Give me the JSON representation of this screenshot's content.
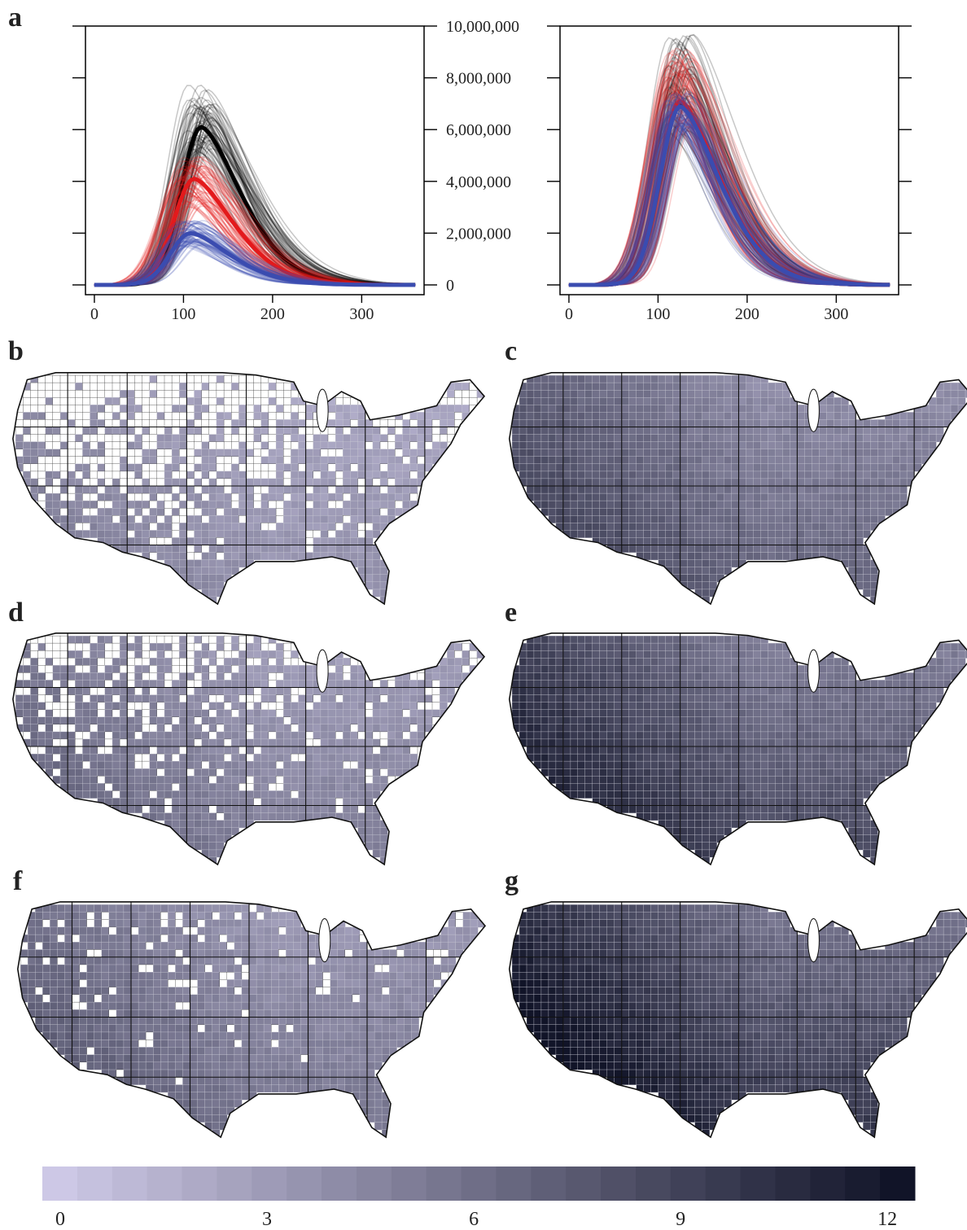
{
  "panel_letters": [
    "a",
    "b",
    "c",
    "d",
    "e",
    "f",
    "g"
  ],
  "chart_data": [
    {
      "type": "line",
      "panel": "a-left",
      "x_ticks": [
        0,
        100,
        200,
        300
      ],
      "y_ticks": [
        0,
        2000000,
        4000000,
        6000000,
        8000000,
        10000000
      ],
      "xlim": [
        -10,
        370
      ],
      "ylim": [
        0,
        10000000
      ],
      "grid": false,
      "series": [
        {
          "color": "#000000",
          "ensemble": true,
          "peak_day": 120,
          "peak_value": 6100000,
          "peak_range": [
            5000000,
            7800000
          ]
        },
        {
          "color": "#e31a1c",
          "ensemble": true,
          "peak_day": 112,
          "peak_value": 4100000,
          "peak_range": [
            3000000,
            5000000
          ]
        },
        {
          "color": "#3a4cb0",
          "ensemble": true,
          "peak_day": 108,
          "peak_value": 2000000,
          "peak_range": [
            1500000,
            2500000
          ]
        }
      ]
    },
    {
      "type": "line",
      "panel": "a-right",
      "x_ticks": [
        0,
        100,
        200,
        300
      ],
      "y_ticks": [
        0,
        2000000,
        4000000,
        6000000,
        8000000,
        10000000
      ],
      "xlim": [
        -10,
        370
      ],
      "ylim": [
        0,
        10000000
      ],
      "grid": false,
      "series": [
        {
          "color": "#000000",
          "ensemble": true,
          "peak_day": 125,
          "peak_value": 7000000,
          "peak_range": [
            5800000,
            9800000
          ]
        },
        {
          "color": "#e31a1c",
          "ensemble": true,
          "peak_day": 125,
          "peak_value": 7100000,
          "peak_range": [
            6000000,
            9200000
          ]
        },
        {
          "color": "#3a4cb0",
          "ensemble": true,
          "peak_day": 125,
          "peak_value": 6900000,
          "peak_range": [
            6000000,
            7500000
          ]
        }
      ]
    }
  ],
  "y_tick_labels": [
    "0",
    "2,000,000",
    "4,000,000",
    "6,000,000",
    "8,000,000",
    "10,000,000"
  ],
  "x_tick_labels": [
    "0",
    "100",
    "200",
    "300"
  ],
  "maps": [
    {
      "panel": "b",
      "intensity": 0.3,
      "coverage": 0.55
    },
    {
      "panel": "c",
      "intensity": 0.55,
      "coverage": 1.0
    },
    {
      "panel": "d",
      "intensity": 0.4,
      "coverage": 0.75
    },
    {
      "panel": "e",
      "intensity": 0.7,
      "coverage": 1.0
    },
    {
      "panel": "f",
      "intensity": 0.45,
      "coverage": 0.92
    },
    {
      "panel": "g",
      "intensity": 0.8,
      "coverage": 1.0
    }
  ],
  "colorbar": {
    "min": 0,
    "max": 12.4,
    "tick_labels": [
      "0",
      "3",
      "6",
      "9",
      "12"
    ],
    "tick_values": [
      0,
      3,
      6,
      9,
      12
    ],
    "color_low": "#cdc8e6",
    "color_high": "#111428"
  }
}
